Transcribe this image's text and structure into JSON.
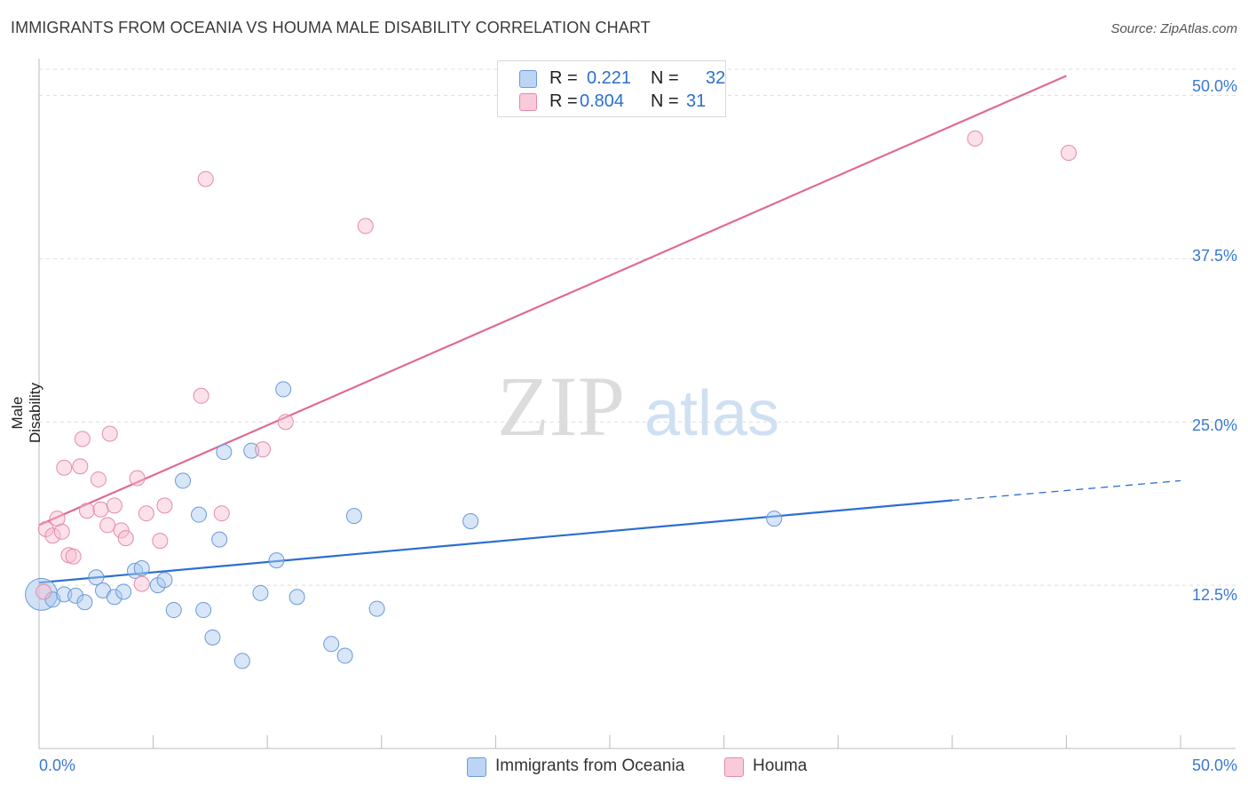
{
  "header": {
    "title": "IMMIGRANTS FROM OCEANIA VS HOUMA MALE DISABILITY CORRELATION CHART",
    "source": "Source: ZipAtlas.com"
  },
  "watermark": {
    "zip": "ZIP",
    "atlas": "atlas"
  },
  "legend_top": {
    "series1": {
      "r_label": "R =",
      "r_value": "0.221",
      "n_label": "N =",
      "n_value": "32"
    },
    "series2": {
      "r_label": "R =",
      "r_value": "0.804",
      "n_label": "N =",
      "n_value": "31"
    }
  },
  "chart_data": {
    "type": "scatter",
    "title": "IMMIGRANTS FROM OCEANIA VS HOUMA MALE DISABILITY CORRELATION CHART",
    "xlabel": "",
    "ylabel": "Male Disability",
    "xlim": [
      0,
      50
    ],
    "ylim": [
      0,
      52
    ],
    "x_tick_labels": [
      "0.0%",
      "50.0%"
    ],
    "y_tick_labels": [
      "12.5%",
      "25.0%",
      "37.5%",
      "50.0%"
    ],
    "y_ticks": [
      12.5,
      25.0,
      37.5,
      50.0
    ],
    "legend_position": "bottom-center",
    "series": [
      {
        "name": "Immigrants from Oceania",
        "color": "#a9c8f0",
        "stroke": "#6a9ad6",
        "trend_color": "#2a6fd1",
        "r": 0.221,
        "n": 32,
        "trend": {
          "x0": 0,
          "y0": 12.7,
          "x1": 40.0,
          "y1": 19.0,
          "dash_to_x": 50,
          "dash_to_y": 20.5
        },
        "points": [
          [
            0.1,
            11.8
          ],
          [
            0.6,
            11.4
          ],
          [
            1.1,
            11.8
          ],
          [
            1.6,
            11.7
          ],
          [
            2.0,
            11.2
          ],
          [
            2.5,
            13.1
          ],
          [
            2.8,
            12.1
          ],
          [
            3.3,
            11.6
          ],
          [
            3.7,
            12.0
          ],
          [
            4.2,
            13.6
          ],
          [
            4.5,
            13.8
          ],
          [
            5.2,
            12.5
          ],
          [
            5.5,
            12.9
          ],
          [
            5.9,
            10.6
          ],
          [
            6.3,
            20.5
          ],
          [
            7.0,
            17.9
          ],
          [
            7.2,
            10.6
          ],
          [
            7.6,
            8.5
          ],
          [
            7.9,
            16.0
          ],
          [
            8.1,
            22.7
          ],
          [
            8.9,
            6.7
          ],
          [
            9.3,
            22.8
          ],
          [
            9.7,
            11.9
          ],
          [
            10.4,
            14.4
          ],
          [
            10.7,
            27.5
          ],
          [
            11.3,
            11.6
          ],
          [
            12.8,
            8.0
          ],
          [
            13.4,
            7.1
          ],
          [
            13.8,
            17.8
          ],
          [
            14.8,
            10.7
          ],
          [
            18.9,
            17.4
          ],
          [
            32.2,
            17.6
          ]
        ]
      },
      {
        "name": "Houma",
        "color": "#f7bdd0",
        "stroke": "#e58aa9",
        "trend_color": "#e06a92",
        "r": 0.804,
        "n": 31,
        "trend": {
          "x0": 0,
          "y0": 17.1,
          "x1": 45.0,
          "y1": 51.5
        },
        "points": [
          [
            0.2,
            12.0
          ],
          [
            0.3,
            16.8
          ],
          [
            0.6,
            16.3
          ],
          [
            0.8,
            17.6
          ],
          [
            1.0,
            16.6
          ],
          [
            1.1,
            21.5
          ],
          [
            1.3,
            14.8
          ],
          [
            1.5,
            14.7
          ],
          [
            1.8,
            21.6
          ],
          [
            1.9,
            23.7
          ],
          [
            2.1,
            18.2
          ],
          [
            2.6,
            20.6
          ],
          [
            2.7,
            18.3
          ],
          [
            3.0,
            17.1
          ],
          [
            3.1,
            24.1
          ],
          [
            3.3,
            18.6
          ],
          [
            3.6,
            16.7
          ],
          [
            3.8,
            16.1
          ],
          [
            4.3,
            20.7
          ],
          [
            4.5,
            12.6
          ],
          [
            4.7,
            18.0
          ],
          [
            5.3,
            15.9
          ],
          [
            5.5,
            18.6
          ],
          [
            7.1,
            27.0
          ],
          [
            7.3,
            43.6
          ],
          [
            8.0,
            18.0
          ],
          [
            9.8,
            22.9
          ],
          [
            10.8,
            25.0
          ],
          [
            14.3,
            40.0
          ],
          [
            41.0,
            46.7
          ],
          [
            45.1,
            45.6
          ]
        ]
      }
    ]
  },
  "legend_bottom": {
    "item1": "Immigrants from Oceania",
    "item2": "Houma"
  }
}
